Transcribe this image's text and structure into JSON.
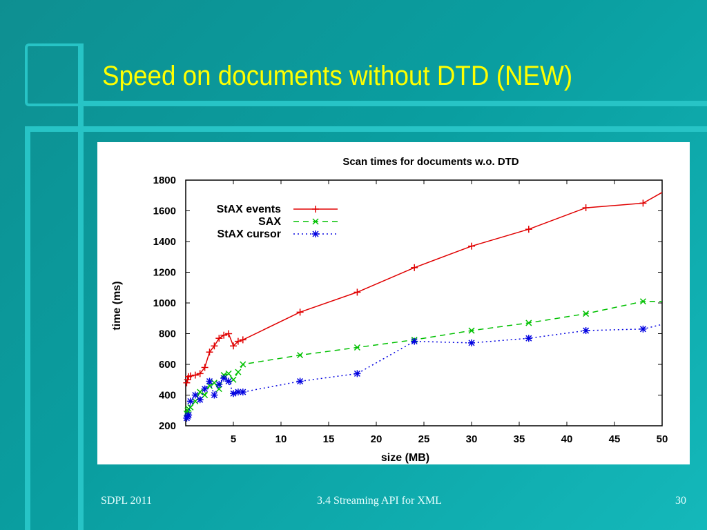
{
  "slide": {
    "title": "Speed on documents without DTD (NEW)",
    "footer_left": "SDPL 2011",
    "footer_center": "3.4 Streaming API for XML",
    "page_number": "30",
    "colors": {
      "background": "#0e9a9c",
      "title": "#ffff00",
      "frame": "#25c6c8"
    }
  },
  "chart_data": {
    "type": "line",
    "title": "Scan times for documents w.o. DTD",
    "xlabel": "size (MB)",
    "ylabel": "time (ms)",
    "xlim": [
      0,
      50
    ],
    "ylim": [
      200,
      1800
    ],
    "x_ticks": [
      5,
      10,
      15,
      20,
      25,
      30,
      35,
      40,
      45,
      50
    ],
    "y_ticks": [
      200,
      400,
      600,
      800,
      1000,
      1200,
      1400,
      1600,
      1800
    ],
    "x_tick_labels": [
      "5",
      "10",
      "15",
      "20",
      "25",
      "30",
      "35",
      "40",
      "45",
      "50"
    ],
    "y_tick_labels": [
      "200",
      "400",
      "600",
      "800",
      "1000",
      "1200",
      "1400",
      "1600",
      "1800"
    ],
    "grid": false,
    "legend_position": "top-left",
    "series": [
      {
        "name": "StAX events",
        "color": "#e00000",
        "marker": "+",
        "dash": "solid",
        "x": [
          0.1,
          0.2,
          0.3,
          0.5,
          1.0,
          1.5,
          2.0,
          2.5,
          3.0,
          3.5,
          4.0,
          4.5,
          5.0,
          5.5,
          6.0,
          12,
          18,
          24,
          30,
          36,
          42,
          48,
          50
        ],
        "y": [
          480,
          500,
          520,
          525,
          530,
          540,
          580,
          680,
          720,
          770,
          790,
          800,
          720,
          750,
          760,
          940,
          1070,
          1230,
          1370,
          1480,
          1620,
          1650,
          1720
        ]
      },
      {
        "name": "SAX",
        "color": "#00c000",
        "marker": "x",
        "dash": "dash",
        "x": [
          0.1,
          0.2,
          0.3,
          0.5,
          1.0,
          1.5,
          2.0,
          2.5,
          3.0,
          3.5,
          4.0,
          4.5,
          5.0,
          5.5,
          6.0,
          12,
          18,
          24,
          30,
          36,
          42,
          48,
          50
        ],
        "y": [
          280,
          300,
          310,
          320,
          360,
          420,
          400,
          460,
          480,
          440,
          530,
          540,
          500,
          550,
          600,
          660,
          710,
          760,
          820,
          870,
          930,
          1010,
          1010
        ]
      },
      {
        "name": "StAX cursor",
        "color": "#0000e0",
        "marker": "*",
        "dash": "dot",
        "x": [
          0.1,
          0.2,
          0.3,
          0.5,
          1.0,
          1.5,
          2.0,
          2.5,
          3.0,
          3.5,
          4.0,
          4.5,
          5.0,
          5.5,
          6.0,
          12,
          18,
          24,
          30,
          36,
          42,
          48,
          50
        ],
        "y": [
          250,
          260,
          270,
          360,
          400,
          370,
          440,
          490,
          400,
          470,
          510,
          490,
          410,
          420,
          420,
          490,
          540,
          750,
          740,
          770,
          820,
          830,
          860
        ]
      }
    ]
  }
}
